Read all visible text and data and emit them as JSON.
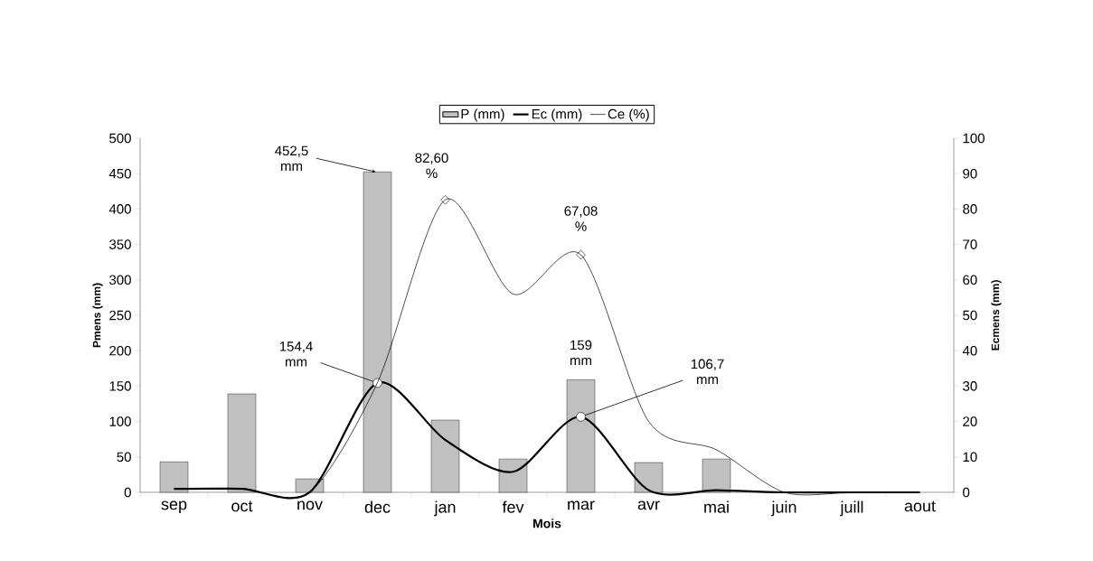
{
  "chart_data": {
    "type": "bar",
    "categories": [
      "sep",
      "oct",
      "nov",
      "dec",
      "jan",
      "fev",
      "mar",
      "avr",
      "mai",
      "juin",
      "juill",
      "aout"
    ],
    "xlabel": "Mois",
    "ylabel": "Pmens (mm)",
    "y2label": "Ecmens (mm)",
    "ylim": [
      0,
      500
    ],
    "yticks": [
      0,
      50,
      100,
      150,
      200,
      250,
      300,
      350,
      400,
      450,
      500
    ],
    "y2lim": [
      0,
      100
    ],
    "y2ticks": [
      0,
      10,
      20,
      30,
      40,
      50,
      60,
      70,
      80,
      90,
      100
    ],
    "series": [
      {
        "name": "P (mm)",
        "color": "#c0c0c0",
        "values": [
          43,
          139,
          19,
          452.5,
          102,
          47,
          159,
          42,
          47,
          null,
          null,
          null
        ]
      },
      {
        "name": "Ec (mm)",
        "type": "line",
        "color": "#000000",
        "values": [
          5,
          5,
          0,
          154.4,
          74,
          29,
          106.7,
          3,
          3,
          0,
          0,
          0
        ]
      },
      {
        "name": "Ce (%)",
        "type": "line",
        "axis": "y2",
        "color": "#000000",
        "values": [
          1,
          1,
          0,
          31,
          82.6,
          56,
          67.08,
          20,
          12,
          0,
          0,
          0
        ]
      }
    ],
    "annotations": [
      {
        "text": "452,5 mm",
        "x": "dec",
        "y": 452.5
      },
      "82,60 %",
      "67,08 %",
      {
        "text": "154,4 mm",
        "x": "dec",
        "y": 154.4
      },
      {
        "text": "159 mm",
        "x": "mar",
        "y": 159
      },
      {
        "text": "106,7 mm",
        "x": "mar",
        "y": 106.7
      }
    ],
    "legend": "top"
  }
}
